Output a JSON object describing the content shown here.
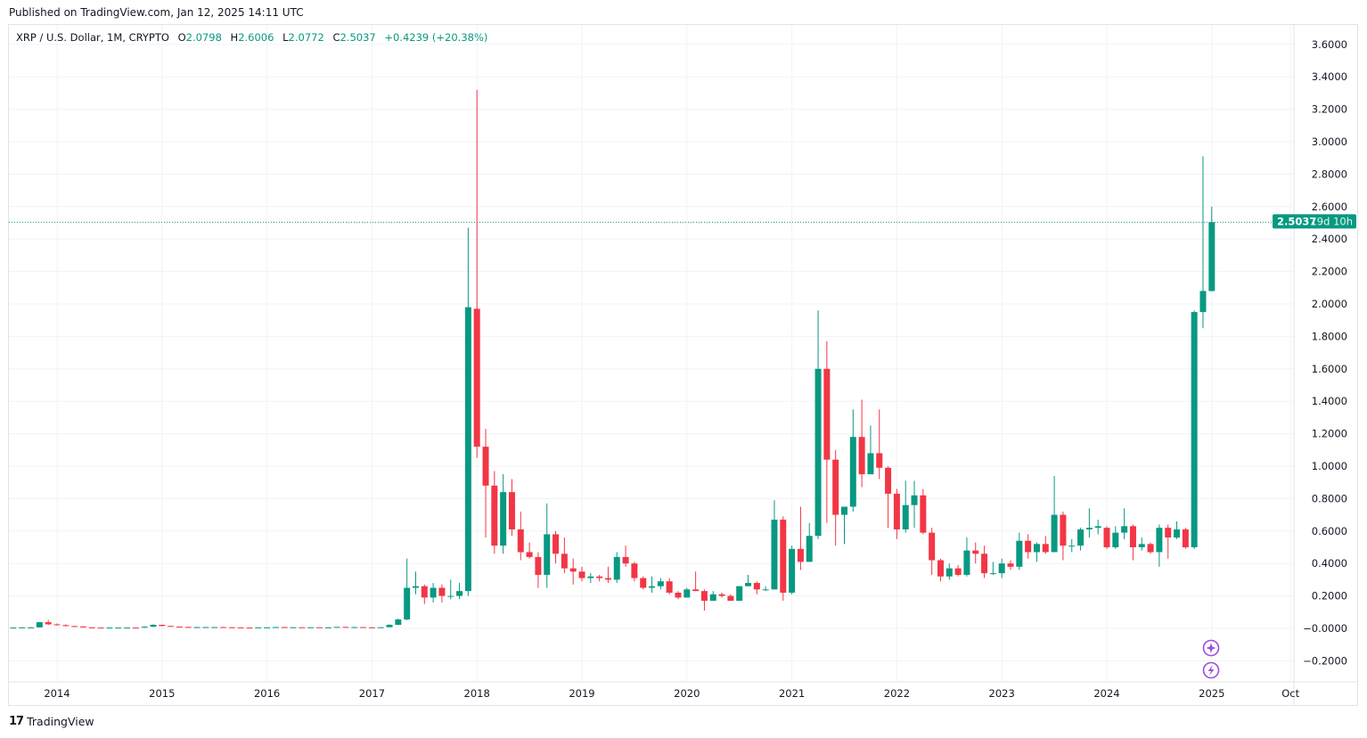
{
  "header": {
    "published": "Published on TradingView.com, Jan 12, 2025 14:11 UTC"
  },
  "legend": {
    "symbol": "XRP / U.S. Dollar, 1M, CRYPTO",
    "o_label": "O",
    "o": "2.0798",
    "h_label": "H",
    "h": "2.6006",
    "l_label": "L",
    "l": "2.0772",
    "c_label": "C",
    "c": "2.5037",
    "change": "+0.4239 (+20.38%)"
  },
  "price_label": {
    "value": "2.5037",
    "countdown": "19d 10h"
  },
  "footer": {
    "brand": "TradingView",
    "logo_mark": "17"
  },
  "colors": {
    "up": "#089981",
    "down": "#F23645",
    "grid": "#f0f3fa",
    "event_icons": "#9c4fdb"
  },
  "icons": [
    "sparkle-event-icon",
    "lightning-event-icon"
  ],
  "chart_data": {
    "type": "candlestick",
    "title": "XRP / U.S. Dollar, 1M, CRYPTO",
    "ylim": [
      -0.3,
      3.72
    ],
    "grid": true,
    "last_price": 2.5037,
    "y_ticks": [
      "3.6000",
      "3.4000",
      "3.2000",
      "3.0000",
      "2.8000",
      "2.6000",
      "2.4000",
      "2.2000",
      "2.0000",
      "1.8000",
      "1.6000",
      "1.4000",
      "1.2000",
      "1.0000",
      "0.8000",
      "0.6000",
      "0.4000",
      "0.2000",
      "−0.0000",
      "−0.2000"
    ],
    "x_ticks": [
      "2014",
      "2015",
      "2016",
      "2017",
      "2018",
      "2019",
      "2020",
      "2021",
      "2022",
      "2023",
      "2024",
      "2025",
      "Oct"
    ],
    "x_tick_dates": [
      "2014-01",
      "2015-01",
      "2016-01",
      "2017-01",
      "2018-01",
      "2019-01",
      "2020-01",
      "2021-01",
      "2022-01",
      "2023-01",
      "2024-01",
      "2025-01",
      "2025-10"
    ],
    "months": [
      "2013-08",
      "2013-09",
      "2013-10",
      "2013-11",
      "2013-12",
      "2014-01",
      "2014-02",
      "2014-03",
      "2014-04",
      "2014-05",
      "2014-06",
      "2014-07",
      "2014-08",
      "2014-09",
      "2014-10",
      "2014-11",
      "2014-12",
      "2015-01",
      "2015-02",
      "2015-03",
      "2015-04",
      "2015-05",
      "2015-06",
      "2015-07",
      "2015-08",
      "2015-09",
      "2015-10",
      "2015-11",
      "2015-12",
      "2016-01",
      "2016-02",
      "2016-03",
      "2016-04",
      "2016-05",
      "2016-06",
      "2016-07",
      "2016-08",
      "2016-09",
      "2016-10",
      "2016-11",
      "2016-12",
      "2017-01",
      "2017-02",
      "2017-03",
      "2017-04",
      "2017-05",
      "2017-06",
      "2017-07",
      "2017-08",
      "2017-09",
      "2017-10",
      "2017-11",
      "2017-12",
      "2018-01",
      "2018-02",
      "2018-03",
      "2018-04",
      "2018-05",
      "2018-06",
      "2018-07",
      "2018-08",
      "2018-09",
      "2018-10",
      "2018-11",
      "2018-12",
      "2019-01",
      "2019-02",
      "2019-03",
      "2019-04",
      "2019-05",
      "2019-06",
      "2019-07",
      "2019-08",
      "2019-09",
      "2019-10",
      "2019-11",
      "2019-12",
      "2020-01",
      "2020-02",
      "2020-03",
      "2020-04",
      "2020-05",
      "2020-06",
      "2020-07",
      "2020-08",
      "2020-09",
      "2020-10",
      "2020-11",
      "2020-12",
      "2021-01",
      "2021-02",
      "2021-03",
      "2021-04",
      "2021-05",
      "2021-06",
      "2021-07",
      "2021-08",
      "2021-09",
      "2021-10",
      "2021-11",
      "2021-12",
      "2022-01",
      "2022-02",
      "2022-03",
      "2022-04",
      "2022-05",
      "2022-06",
      "2022-07",
      "2022-08",
      "2022-09",
      "2022-10",
      "2022-11",
      "2022-12",
      "2023-01",
      "2023-02",
      "2023-03",
      "2023-04",
      "2023-05",
      "2023-06",
      "2023-07",
      "2023-08",
      "2023-09",
      "2023-10",
      "2023-11",
      "2023-12",
      "2024-01",
      "2024-02",
      "2024-03",
      "2024-04",
      "2024-05",
      "2024-06",
      "2024-07",
      "2024-08",
      "2024-09",
      "2024-10",
      "2024-11",
      "2024-12",
      "2025-01"
    ],
    "ohlc": [
      [
        0.005,
        0.006,
        0.004,
        0.005
      ],
      [
        0.005,
        0.007,
        0.005,
        0.006
      ],
      [
        0.006,
        0.008,
        0.005,
        0.006
      ],
      [
        0.006,
        0.04,
        0.005,
        0.038
      ],
      [
        0.038,
        0.052,
        0.02,
        0.025
      ],
      [
        0.025,
        0.03,
        0.018,
        0.02
      ],
      [
        0.02,
        0.024,
        0.012,
        0.014
      ],
      [
        0.014,
        0.017,
        0.01,
        0.012
      ],
      [
        0.012,
        0.013,
        0.004,
        0.006
      ],
      [
        0.006,
        0.007,
        0.004,
        0.005
      ],
      [
        0.005,
        0.006,
        0.004,
        0.004
      ],
      [
        0.004,
        0.006,
        0.004,
        0.005
      ],
      [
        0.005,
        0.006,
        0.004,
        0.005
      ],
      [
        0.005,
        0.006,
        0.004,
        0.005
      ],
      [
        0.005,
        0.006,
        0.004,
        0.004
      ],
      [
        0.004,
        0.012,
        0.004,
        0.01
      ],
      [
        0.01,
        0.025,
        0.008,
        0.022
      ],
      [
        0.022,
        0.023,
        0.012,
        0.015
      ],
      [
        0.015,
        0.016,
        0.01,
        0.011
      ],
      [
        0.011,
        0.012,
        0.008,
        0.009
      ],
      [
        0.009,
        0.01,
        0.006,
        0.007
      ],
      [
        0.007,
        0.009,
        0.006,
        0.008
      ],
      [
        0.008,
        0.009,
        0.007,
        0.008
      ],
      [
        0.008,
        0.009,
        0.007,
        0.008
      ],
      [
        0.008,
        0.009,
        0.006,
        0.007
      ],
      [
        0.007,
        0.008,
        0.006,
        0.006
      ],
      [
        0.006,
        0.006,
        0.005,
        0.005
      ],
      [
        0.005,
        0.006,
        0.004,
        0.004
      ],
      [
        0.004,
        0.006,
        0.004,
        0.006
      ],
      [
        0.006,
        0.007,
        0.005,
        0.006
      ],
      [
        0.006,
        0.009,
        0.006,
        0.008
      ],
      [
        0.008,
        0.009,
        0.007,
        0.007
      ],
      [
        0.007,
        0.008,
        0.006,
        0.007
      ],
      [
        0.007,
        0.007,
        0.006,
        0.006
      ],
      [
        0.006,
        0.007,
        0.006,
        0.007
      ],
      [
        0.007,
        0.007,
        0.006,
        0.006
      ],
      [
        0.006,
        0.007,
        0.005,
        0.006
      ],
      [
        0.006,
        0.009,
        0.006,
        0.009
      ],
      [
        0.009,
        0.009,
        0.007,
        0.007
      ],
      [
        0.007,
        0.009,
        0.007,
        0.008
      ],
      [
        0.008,
        0.008,
        0.006,
        0.006
      ],
      [
        0.0065,
        0.0075,
        0.006,
        0.0063
      ],
      [
        0.0063,
        0.0075,
        0.0062,
        0.0072
      ],
      [
        0.0072,
        0.025,
        0.007,
        0.022
      ],
      [
        0.022,
        0.06,
        0.02,
        0.055
      ],
      [
        0.055,
        0.43,
        0.05,
        0.25
      ],
      [
        0.25,
        0.35,
        0.21,
        0.26
      ],
      [
        0.26,
        0.27,
        0.15,
        0.19
      ],
      [
        0.19,
        0.28,
        0.16,
        0.25
      ],
      [
        0.25,
        0.27,
        0.16,
        0.2
      ],
      [
        0.2,
        0.3,
        0.18,
        0.2
      ],
      [
        0.2,
        0.28,
        0.18,
        0.23
      ],
      [
        0.23,
        2.47,
        0.2,
        1.98
      ],
      [
        1.97,
        3.32,
        1.05,
        1.12
      ],
      [
        1.12,
        1.23,
        0.56,
        0.88
      ],
      [
        0.88,
        0.97,
        0.46,
        0.51
      ],
      [
        0.51,
        0.95,
        0.46,
        0.84
      ],
      [
        0.84,
        0.92,
        0.57,
        0.61
      ],
      [
        0.61,
        0.72,
        0.42,
        0.47
      ],
      [
        0.47,
        0.53,
        0.43,
        0.44
      ],
      [
        0.44,
        0.47,
        0.25,
        0.33
      ],
      [
        0.33,
        0.77,
        0.25,
        0.58
      ],
      [
        0.58,
        0.6,
        0.4,
        0.46
      ],
      [
        0.46,
        0.56,
        0.34,
        0.37
      ],
      [
        0.37,
        0.43,
        0.27,
        0.35
      ],
      [
        0.35,
        0.38,
        0.29,
        0.31
      ],
      [
        0.31,
        0.34,
        0.28,
        0.32
      ],
      [
        0.32,
        0.33,
        0.29,
        0.31
      ],
      [
        0.31,
        0.38,
        0.28,
        0.3
      ],
      [
        0.3,
        0.47,
        0.28,
        0.44
      ],
      [
        0.44,
        0.51,
        0.38,
        0.4
      ],
      [
        0.4,
        0.41,
        0.29,
        0.31
      ],
      [
        0.31,
        0.32,
        0.24,
        0.25
      ],
      [
        0.25,
        0.32,
        0.22,
        0.26
      ],
      [
        0.26,
        0.31,
        0.24,
        0.29
      ],
      [
        0.29,
        0.31,
        0.21,
        0.22
      ],
      [
        0.22,
        0.23,
        0.18,
        0.19
      ],
      [
        0.19,
        0.25,
        0.19,
        0.24
      ],
      [
        0.24,
        0.35,
        0.23,
        0.23
      ],
      [
        0.23,
        0.24,
        0.11,
        0.17
      ],
      [
        0.17,
        0.23,
        0.17,
        0.21
      ],
      [
        0.21,
        0.22,
        0.19,
        0.2
      ],
      [
        0.2,
        0.21,
        0.17,
        0.17
      ],
      [
        0.17,
        0.26,
        0.17,
        0.26
      ],
      [
        0.26,
        0.33,
        0.26,
        0.28
      ],
      [
        0.28,
        0.29,
        0.21,
        0.24
      ],
      [
        0.24,
        0.26,
        0.23,
        0.24
      ],
      [
        0.24,
        0.79,
        0.24,
        0.67
      ],
      [
        0.67,
        0.69,
        0.17,
        0.22
      ],
      [
        0.22,
        0.51,
        0.21,
        0.49
      ],
      [
        0.49,
        0.75,
        0.36,
        0.41
      ],
      [
        0.41,
        0.65,
        0.41,
        0.57
      ],
      [
        0.57,
        1.96,
        0.55,
        1.6
      ],
      [
        1.6,
        1.77,
        0.65,
        1.04
      ],
      [
        1.04,
        1.1,
        0.51,
        0.7
      ],
      [
        0.7,
        0.75,
        0.52,
        0.75
      ],
      [
        0.75,
        1.35,
        0.72,
        1.18
      ],
      [
        1.18,
        1.41,
        0.87,
        0.95
      ],
      [
        0.95,
        1.25,
        0.95,
        1.08
      ],
      [
        1.08,
        1.35,
        0.92,
        0.99
      ],
      [
        0.99,
        1.0,
        0.62,
        0.83
      ],
      [
        0.83,
        0.86,
        0.55,
        0.61
      ],
      [
        0.61,
        0.91,
        0.59,
        0.76
      ],
      [
        0.76,
        0.91,
        0.62,
        0.82
      ],
      [
        0.82,
        0.86,
        0.58,
        0.59
      ],
      [
        0.59,
        0.62,
        0.33,
        0.42
      ],
      [
        0.42,
        0.43,
        0.29,
        0.32
      ],
      [
        0.32,
        0.4,
        0.3,
        0.37
      ],
      [
        0.37,
        0.39,
        0.32,
        0.33
      ],
      [
        0.33,
        0.56,
        0.32,
        0.48
      ],
      [
        0.48,
        0.53,
        0.4,
        0.46
      ],
      [
        0.46,
        0.51,
        0.31,
        0.34
      ],
      [
        0.34,
        0.41,
        0.33,
        0.34
      ],
      [
        0.34,
        0.43,
        0.31,
        0.4
      ],
      [
        0.4,
        0.42,
        0.36,
        0.38
      ],
      [
        0.38,
        0.59,
        0.36,
        0.54
      ],
      [
        0.54,
        0.58,
        0.43,
        0.47
      ],
      [
        0.47,
        0.53,
        0.41,
        0.52
      ],
      [
        0.52,
        0.57,
        0.46,
        0.47
      ],
      [
        0.47,
        0.94,
        0.47,
        0.7
      ],
      [
        0.7,
        0.72,
        0.42,
        0.51
      ],
      [
        0.51,
        0.55,
        0.47,
        0.51
      ],
      [
        0.51,
        0.62,
        0.48,
        0.61
      ],
      [
        0.61,
        0.74,
        0.56,
        0.62
      ],
      [
        0.62,
        0.67,
        0.58,
        0.63
      ],
      [
        0.62,
        0.63,
        0.49,
        0.5
      ],
      [
        0.5,
        0.63,
        0.49,
        0.59
      ],
      [
        0.59,
        0.74,
        0.55,
        0.63
      ],
      [
        0.63,
        0.64,
        0.42,
        0.5
      ],
      [
        0.5,
        0.56,
        0.48,
        0.52
      ],
      [
        0.52,
        0.53,
        0.46,
        0.47
      ],
      [
        0.47,
        0.64,
        0.38,
        0.62
      ],
      [
        0.62,
        0.64,
        0.43,
        0.56
      ],
      [
        0.56,
        0.66,
        0.55,
        0.61
      ],
      [
        0.61,
        0.62,
        0.49,
        0.5
      ],
      [
        0.5,
        1.96,
        0.49,
        1.95
      ],
      [
        1.95,
        2.91,
        1.85,
        2.08
      ],
      [
        2.0798,
        2.6006,
        2.0772,
        2.5037
      ]
    ]
  }
}
